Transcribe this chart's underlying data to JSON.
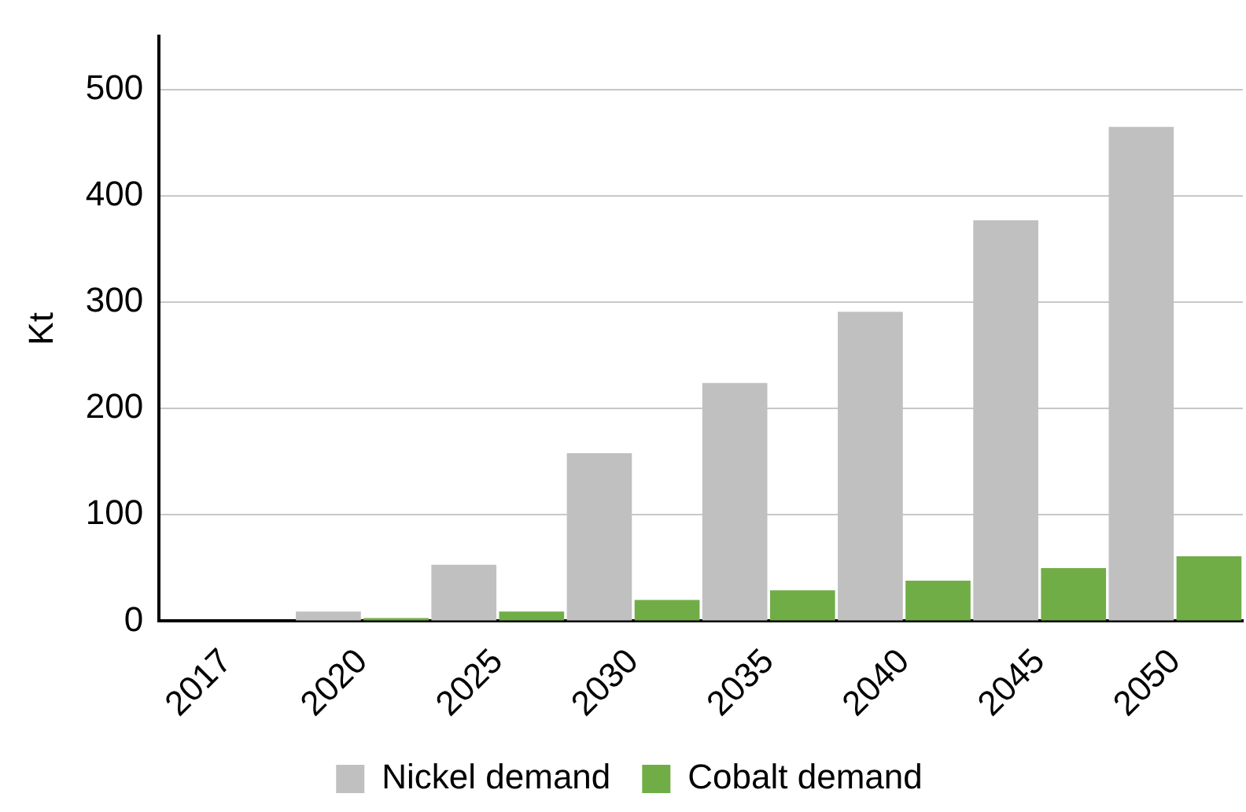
{
  "chart_data": {
    "type": "bar",
    "ylabel": "Kt",
    "categories": [
      "2017",
      "2020",
      "2025",
      "2030",
      "2035",
      "2040",
      "2045",
      "2050"
    ],
    "series": [
      {
        "name": "Nickel demand",
        "color": "#c0c0c0",
        "values": [
          0,
          9,
          53,
          158,
          224,
          291,
          377,
          465
        ]
      },
      {
        "name": "Cobalt demand",
        "color": "#70ad47",
        "values": [
          0,
          3,
          9,
          20,
          29,
          38,
          50,
          61
        ]
      }
    ],
    "ylim": [
      0,
      550
    ],
    "yticks": [
      0,
      100,
      200,
      300,
      400,
      500
    ],
    "grid": "y",
    "legend": "bottom"
  }
}
